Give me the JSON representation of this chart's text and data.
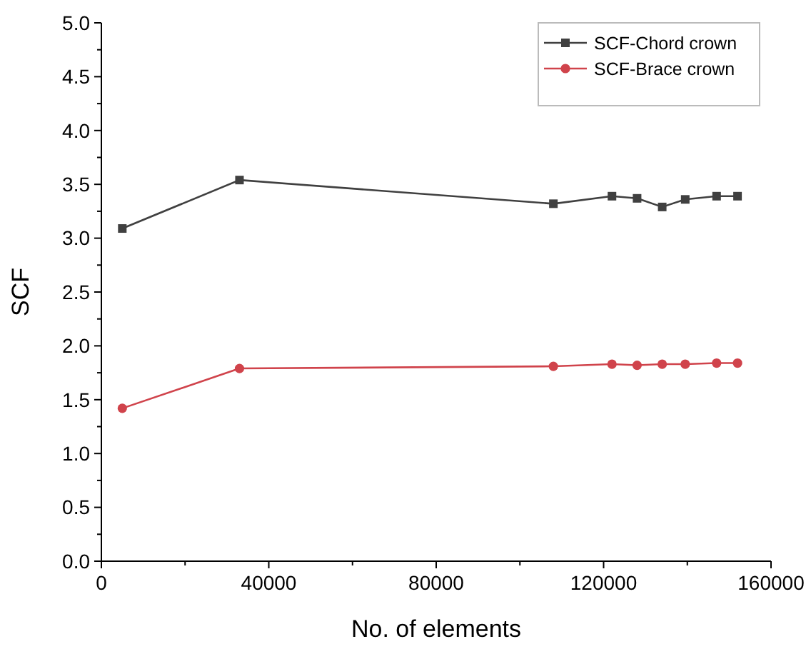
{
  "chart_data": {
    "type": "line",
    "xlabel": "No. of elements",
    "ylabel": "SCF",
    "xlim": [
      0,
      160000
    ],
    "ylim": [
      0,
      5.0
    ],
    "xticks": [
      0,
      {
        "value": 20000,
        "label": null
      },
      40000,
      {
        "value": 60000,
        "label": null
      },
      80000,
      {
        "value": 100000,
        "label": null
      },
      120000,
      {
        "value": 140000,
        "label": null
      },
      160000
    ],
    "yticks": [
      {
        "value": 0,
        "label": "0.0"
      },
      {
        "value": 0.25,
        "label": null
      },
      0.5,
      {
        "value": 0.75,
        "label": null
      },
      {
        "value": 1,
        "label": "1.0"
      },
      {
        "value": 1.25,
        "label": null
      },
      1.5,
      {
        "value": 1.75,
        "label": null
      },
      {
        "value": 2,
        "label": "2.0"
      },
      {
        "value": 2.25,
        "label": null
      },
      2.5,
      {
        "value": 2.75,
        "label": null
      },
      {
        "value": 3,
        "label": "3.0"
      },
      {
        "value": 3.25,
        "label": null
      },
      3.5,
      {
        "value": 3.75,
        "label": null
      },
      {
        "value": 4,
        "label": "4.0"
      },
      {
        "value": 4.25,
        "label": null
      },
      4.5,
      {
        "value": 4.75,
        "label": null
      },
      {
        "value": 5,
        "label": "5.0"
      }
    ],
    "x": [
      5000,
      33000,
      108000,
      122000,
      128000,
      134000,
      139500,
      147000,
      152000
    ],
    "legend": "top right",
    "grid": false,
    "series": [
      {
        "name": "SCF-Chord crown",
        "color": "#404040",
        "marker": "square",
        "values": [
          3.09,
          3.54,
          3.32,
          3.39,
          3.37,
          3.29,
          3.36,
          3.39,
          3.39
        ]
      },
      {
        "name": "SCF-Brace crown",
        "color": "#d0434b",
        "marker": "circle",
        "values": [
          1.42,
          1.79,
          1.81,
          1.83,
          1.82,
          1.83,
          1.83,
          1.84,
          1.84
        ]
      }
    ]
  }
}
